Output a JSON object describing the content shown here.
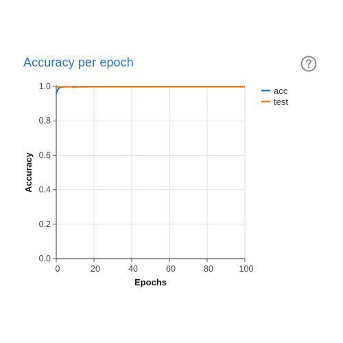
{
  "card": {
    "title": "Accuracy per epoch",
    "help_icon": "help-circle-icon"
  },
  "chart_data": {
    "type": "line",
    "xlabel": "Epochs",
    "ylabel": "Accuracy",
    "xlim": [
      0,
      100
    ],
    "ylim": [
      0,
      1.0
    ],
    "xticks": [
      0,
      20,
      40,
      60,
      80,
      100
    ],
    "yticks": [
      0.0,
      0.2,
      0.4,
      0.6,
      0.8,
      1.0
    ],
    "xtick_labels": [
      "0",
      "20",
      "40",
      "60",
      "80",
      "100"
    ],
    "ytick_labels": [
      "0.0",
      "0.2",
      "0.4",
      "0.6",
      "0.8",
      "1.0"
    ],
    "grid": true,
    "legend_position": "right",
    "series": [
      {
        "name": "acc",
        "color": "#1f77b4",
        "x": [
          0,
          1,
          2,
          3,
          5,
          10,
          20,
          40,
          60,
          80,
          100
        ],
        "y": [
          0.96,
          0.985,
          0.995,
          0.997,
          0.998,
          0.999,
          0.999,
          0.999,
          0.999,
          0.999,
          0.999
        ]
      },
      {
        "name": "test",
        "color": "#ff7f0e",
        "x": [
          0,
          1,
          2,
          5,
          8,
          9,
          10,
          11,
          20,
          40,
          60,
          80,
          100
        ],
        "y": [
          0.995,
          0.997,
          0.998,
          0.998,
          0.998,
          0.995,
          0.995,
          0.997,
          0.998,
          0.998,
          0.998,
          0.998,
          0.998
        ]
      }
    ]
  }
}
